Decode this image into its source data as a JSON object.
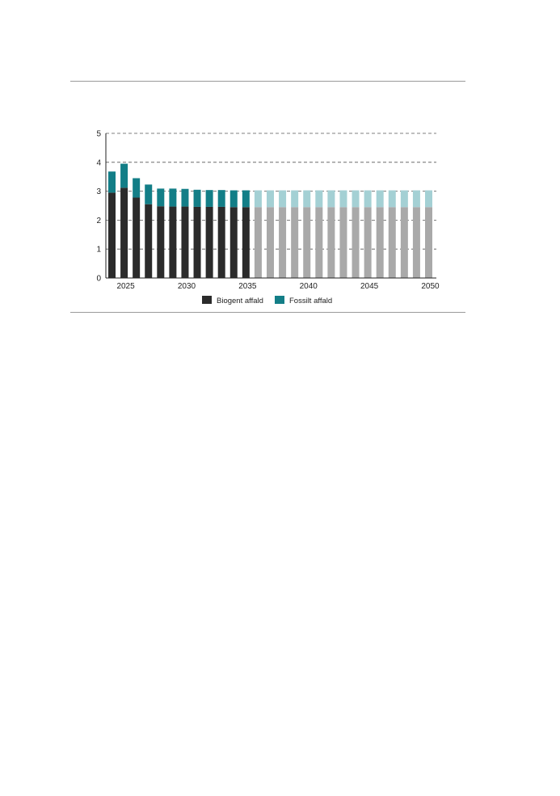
{
  "colors": {
    "biogenic": "#2b2b2b",
    "fossil": "#137e87",
    "biogenic_projection": "#a9a9a9",
    "fossil_projection": "#a4d0d4",
    "grid": "#555555",
    "axis": "#222222",
    "rule": "#9a9a9a"
  },
  "chart_data": {
    "type": "bar",
    "stacked": true,
    "x": [
      2024,
      2025,
      2026,
      2027,
      2028,
      2029,
      2030,
      2031,
      2032,
      2033,
      2034,
      2035,
      2036,
      2037,
      2038,
      2039,
      2040,
      2041,
      2042,
      2043,
      2044,
      2045,
      2046,
      2047,
      2048,
      2049,
      2050
    ],
    "x_ticks": [
      "2025",
      "2030",
      "2035",
      "2040",
      "2045",
      "2050"
    ],
    "x_tick_values": [
      2025,
      2030,
      2035,
      2040,
      2045,
      2050
    ],
    "y_ticks": [
      "0",
      "1",
      "2",
      "3",
      "4",
      "5"
    ],
    "ylim": [
      0,
      5
    ],
    "grid": "horizontal dashed",
    "legend_position": "bottom-center",
    "series": [
      {
        "name": "Biogent affald",
        "values": [
          2.95,
          3.12,
          2.78,
          2.55,
          2.48,
          2.47,
          2.47,
          2.46,
          2.46,
          2.46,
          2.45,
          2.45,
          2.45,
          2.45,
          2.45,
          2.45,
          2.45,
          2.45,
          2.45,
          2.45,
          2.45,
          2.45,
          2.45,
          2.45,
          2.45,
          2.45,
          2.45
        ]
      },
      {
        "name": "Fossilt affald",
        "values": [
          0.73,
          0.83,
          0.67,
          0.68,
          0.61,
          0.62,
          0.61,
          0.59,
          0.58,
          0.58,
          0.58,
          0.58,
          0.58,
          0.58,
          0.58,
          0.58,
          0.58,
          0.58,
          0.58,
          0.58,
          0.58,
          0.58,
          0.58,
          0.58,
          0.58,
          0.58,
          0.58
        ]
      }
    ],
    "projection_from": 2036
  }
}
